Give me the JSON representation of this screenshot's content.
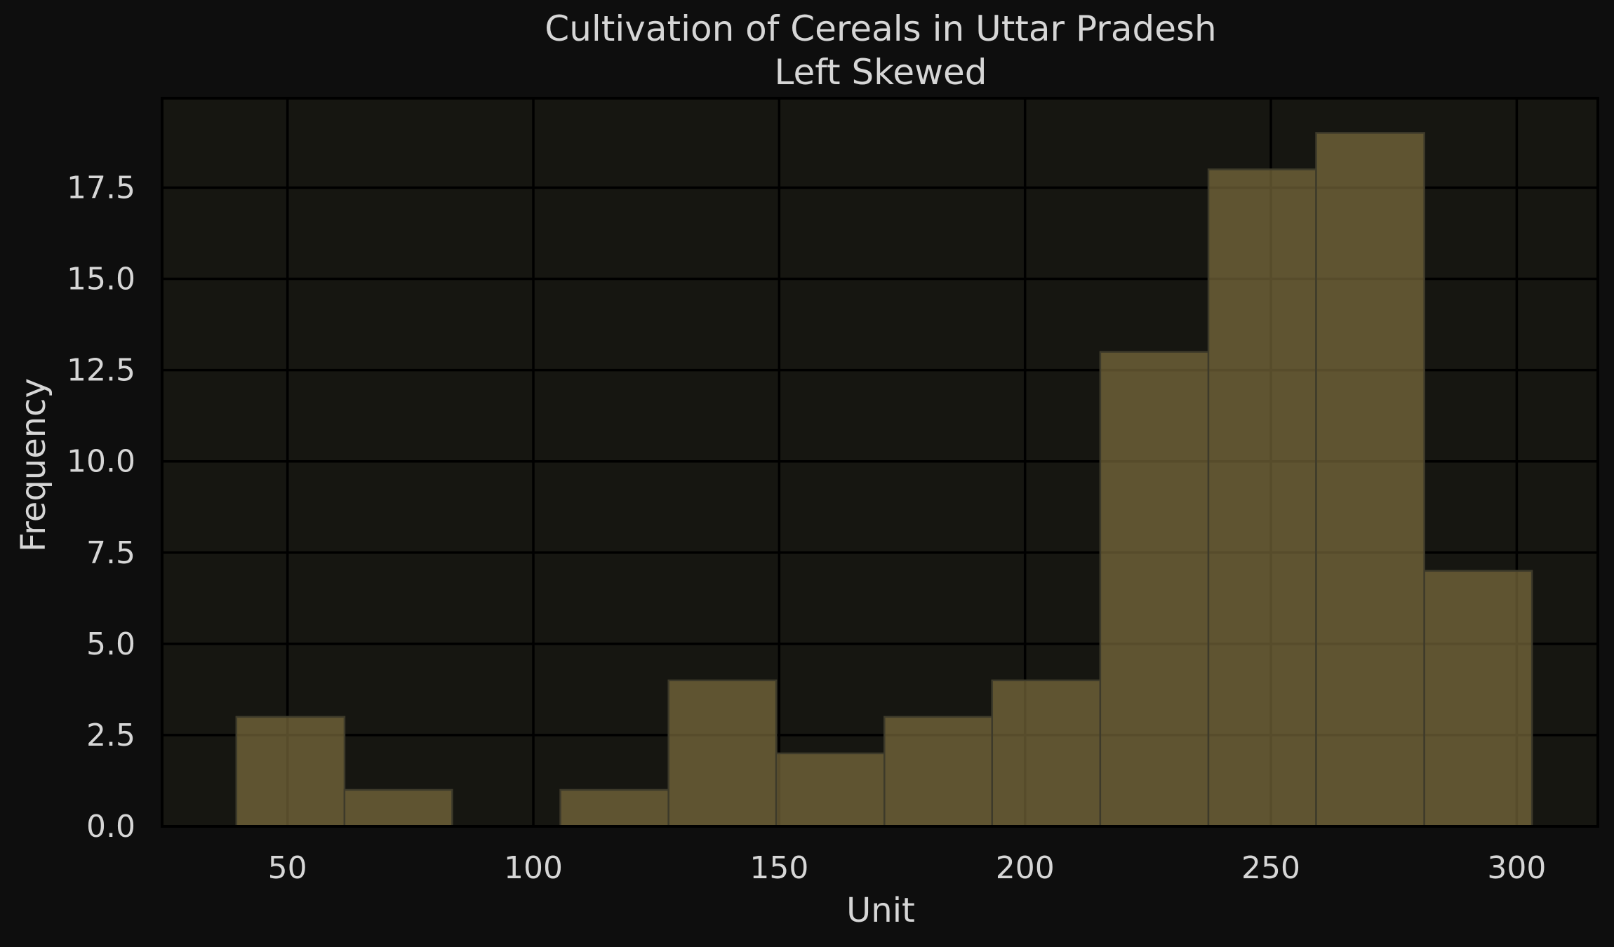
{
  "chart_data": {
    "type": "histogram",
    "title": "Cultivation of Cereals in Uttar Pradesh",
    "subtitle": "Left Skewed",
    "xlabel": "Unit",
    "ylabel": "Frequency",
    "xlim": [
      24.5,
      316.5
    ],
    "ylim": [
      0,
      19.95
    ],
    "x_ticks": [
      50,
      100,
      150,
      200,
      250,
      300
    ],
    "y_ticks": [
      0.0,
      2.5,
      5.0,
      7.5,
      10.0,
      12.5,
      15.0,
      17.5
    ],
    "grid": true,
    "bins": [
      {
        "start": 39.6,
        "end": 61.6,
        "count": 3
      },
      {
        "start": 61.6,
        "end": 83.5,
        "count": 1
      },
      {
        "start": 83.5,
        "end": 105.5,
        "count": 0
      },
      {
        "start": 105.5,
        "end": 127.5,
        "count": 1
      },
      {
        "start": 127.5,
        "end": 149.4,
        "count": 4
      },
      {
        "start": 149.4,
        "end": 171.4,
        "count": 2
      },
      {
        "start": 171.4,
        "end": 193.3,
        "count": 3
      },
      {
        "start": 193.3,
        "end": 215.3,
        "count": 4
      },
      {
        "start": 215.3,
        "end": 237.3,
        "count": 13
      },
      {
        "start": 237.3,
        "end": 259.2,
        "count": 18
      },
      {
        "start": 259.2,
        "end": 281.2,
        "count": 19
      },
      {
        "start": 281.2,
        "end": 303.1,
        "count": 7
      }
    ],
    "colors": {
      "page_background": "#0e0e0e",
      "plot_background": "#161611",
      "bar": "#8c7a45",
      "grid": "#000000",
      "text": "#d6d6d6"
    }
  }
}
